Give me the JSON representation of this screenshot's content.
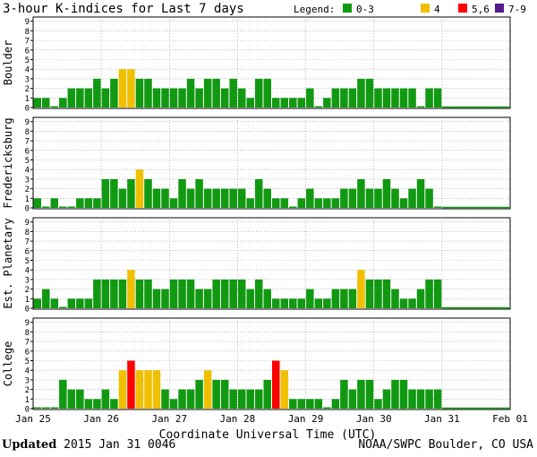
{
  "header": {
    "title": "3-hour K-indices for Last 7 days",
    "legend_label": "Legend:",
    "legend": [
      {
        "label": "0-3",
        "color": "#119911"
      },
      {
        "label": "4",
        "color": "#f0c000"
      },
      {
        "label": "5,6",
        "color": "#ff0000"
      },
      {
        "label": "7-9",
        "color": "#551a8b"
      }
    ]
  },
  "footer": {
    "updated_label": "Updated",
    "updated_value": "2015 Jan 31 0046",
    "credit": "NOAA/SWPC Boulder, CO USA"
  },
  "chart_data": {
    "type": "bar",
    "title": "3-hour K-indices for Last 7 days",
    "xlabel": "Coordinate Universal Time (UTC)",
    "x_ticks": [
      "Jan 25",
      "Jan 26",
      "Jan 27",
      "Jan 28",
      "Jan 29",
      "Jan 30",
      "Jan 31",
      "Feb 01"
    ],
    "ylim": [
      0,
      9
    ],
    "y_ticks": [
      "0",
      "1",
      "2",
      "3",
      "4",
      "5",
      "6",
      "7",
      "8",
      "9"
    ],
    "grid": "dotted",
    "interval_hours": 3,
    "panels": [
      {
        "name": "Boulder",
        "values": [
          1,
          1,
          0,
          1,
          2,
          2,
          2,
          3,
          2,
          3,
          4,
          4,
          3,
          3,
          2,
          2,
          2,
          2,
          3,
          2,
          3,
          3,
          2,
          3,
          2,
          1,
          3,
          3,
          1,
          1,
          1,
          1,
          2,
          0,
          1,
          2,
          2,
          2,
          3,
          3,
          2,
          2,
          2,
          2,
          2,
          0,
          2,
          2
        ]
      },
      {
        "name": "Fredericksburg",
        "values": [
          1,
          0,
          1,
          0,
          0,
          1,
          1,
          1,
          3,
          3,
          2,
          3,
          4,
          3,
          2,
          2,
          1,
          3,
          2,
          3,
          2,
          2,
          2,
          2,
          2,
          1,
          3,
          2,
          1,
          1,
          0,
          1,
          2,
          1,
          1,
          1,
          2,
          2,
          3,
          2,
          2,
          3,
          2,
          1,
          2,
          3,
          2,
          0
        ]
      },
      {
        "name": "Est. Planetary",
        "values": [
          1,
          2,
          1,
          0,
          1,
          1,
          1,
          3,
          3,
          3,
          3,
          4,
          3,
          3,
          2,
          2,
          3,
          3,
          3,
          2,
          2,
          3,
          3,
          3,
          3,
          2,
          3,
          2,
          1,
          1,
          1,
          1,
          2,
          1,
          1,
          2,
          2,
          2,
          4,
          3,
          3,
          3,
          2,
          1,
          1,
          2,
          3,
          3
        ]
      },
      {
        "name": "College",
        "values": [
          0,
          0,
          0,
          3,
          2,
          2,
          1,
          1,
          2,
          1,
          4,
          5,
          4,
          4,
          4,
          2,
          1,
          2,
          2,
          3,
          4,
          3,
          3,
          2,
          2,
          2,
          2,
          3,
          5,
          4,
          1,
          1,
          1,
          1,
          0,
          1,
          3,
          2,
          3,
          3,
          1,
          2,
          3,
          3,
          2,
          2,
          2,
          2
        ]
      }
    ]
  }
}
